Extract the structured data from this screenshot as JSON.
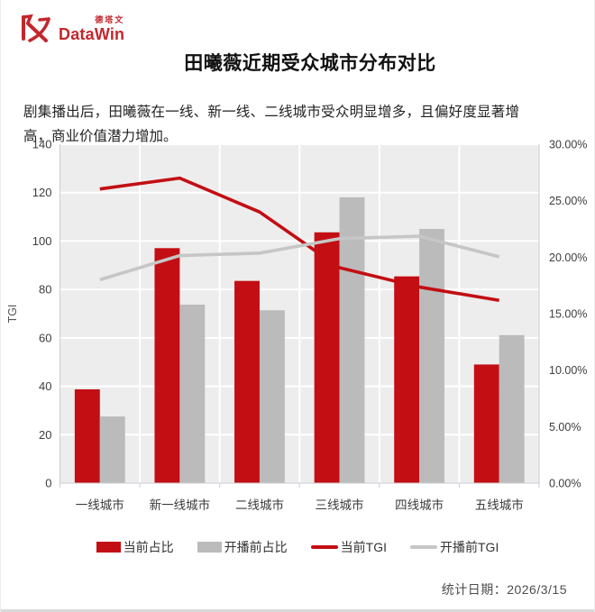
{
  "header": {
    "logo": {
      "brand_cn": "德塔文",
      "brand_en": "DataWin",
      "color": "#C2272D"
    },
    "title": "田曦薇近期受众城市分布对比"
  },
  "description": "剧集播出后，田曦薇在一线、新一线、二线城市受众明显增多，且偏好度显著增高，商业价值潜力增加。",
  "chart_data": {
    "type": "bar",
    "subtype": "grouped-bars-with-lines-dual-axis",
    "title": "",
    "categories": [
      "一线城市",
      "新一线城市",
      "二线城市",
      "三线城市",
      "四线城市",
      "五线城市"
    ],
    "bar_series": [
      {
        "name": "当前占比",
        "axis": "right",
        "unit": "%",
        "color": "#C30E13",
        "values": [
          8.3,
          20.8,
          17.9,
          22.2,
          18.3,
          10.5
        ]
      },
      {
        "name": "开播前占比",
        "axis": "right",
        "unit": "%",
        "color": "#BBBBBB",
        "values": [
          5.9,
          15.8,
          15.3,
          25.3,
          22.5,
          13.1
        ]
      }
    ],
    "line_series": [
      {
        "name": "当前TGI",
        "axis": "left",
        "color": "#C30E13",
        "values": [
          121.5,
          126,
          112,
          89,
          81,
          75.5
        ]
      },
      {
        "name": "开播前TGI",
        "axis": "left",
        "color": "#C6C6C6",
        "values": [
          84,
          94,
          95,
          101,
          102,
          93.5
        ]
      }
    ],
    "left_axis": {
      "label": "TGI",
      "min": 0,
      "max": 140,
      "step": 20,
      "ticks": [
        "0",
        "20",
        "40",
        "60",
        "80",
        "100",
        "120",
        "140"
      ]
    },
    "right_axis": {
      "label": "",
      "min": 0,
      "max": 30,
      "step": 5,
      "ticks": [
        "0.00%",
        "5.00%",
        "10.00%",
        "15.00%",
        "20.00%",
        "25.00%",
        "30.00%"
      ]
    },
    "grid": true,
    "plot_bg": "#EDEDED",
    "grid_color": "#FFFFFF",
    "axis_line_color": "#C9CDD6",
    "tick_text_color": "#3D3D3D",
    "legend_position": "bottom"
  },
  "legend": [
    {
      "label": "当前占比",
      "swatch": "bar",
      "color": "#C30E13"
    },
    {
      "label": "开播前占比",
      "swatch": "bar",
      "color": "#BBBBBB"
    },
    {
      "label": "当前TGI",
      "swatch": "line",
      "color": "#C30E13"
    },
    {
      "label": "开播前TGI",
      "swatch": "line",
      "color": "#C6C6C6"
    }
  ],
  "footer": {
    "stat_date": "统计日期：2026/3/15"
  }
}
